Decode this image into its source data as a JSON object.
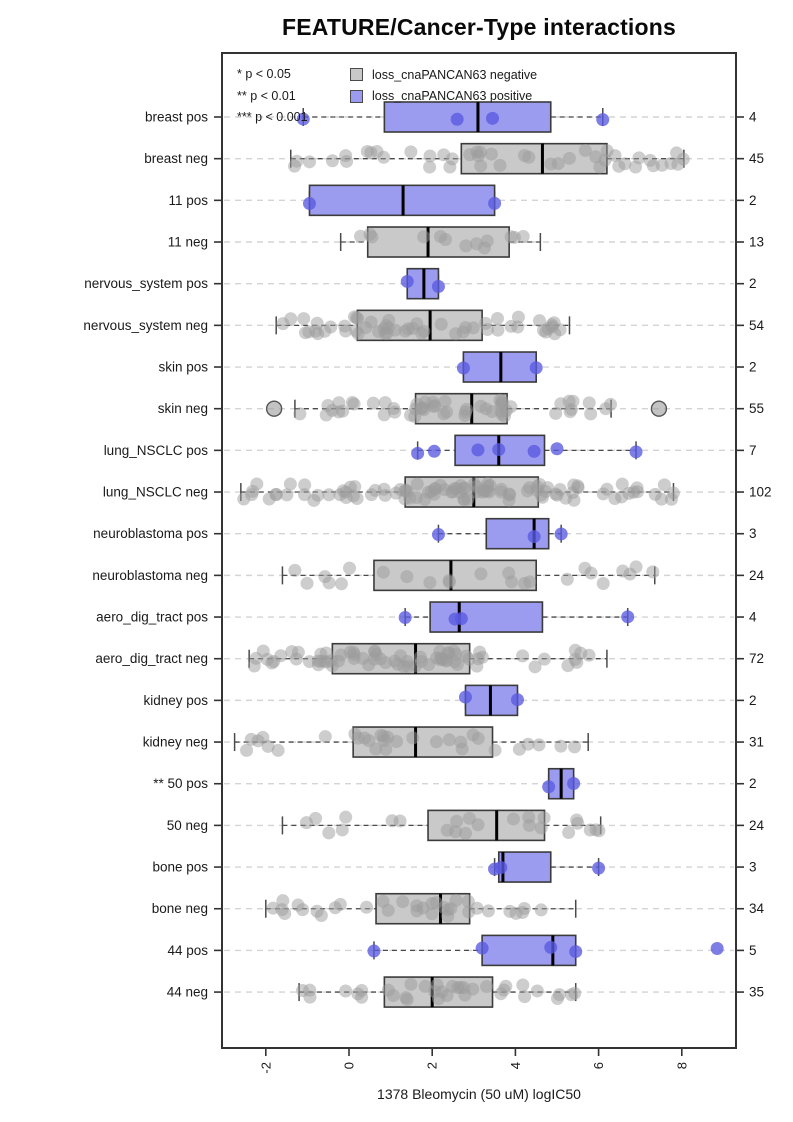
{
  "title": "FEATURE/Cancer-Type interactions",
  "x_axis": {
    "label": "1378 Bleomycin (50 uM) logIC50",
    "ticks": [
      -2,
      0,
      2,
      4,
      6,
      8
    ],
    "range": [
      -3.05,
      9.3
    ]
  },
  "significance_legend": [
    "* p < 0.05",
    "** p < 0.01",
    "*** p < 0.001"
  ],
  "series_legend": [
    {
      "label": "loss_cnaPANCAN63 negative",
      "color": "#c9c9c9"
    },
    {
      "label": "loss_cnaPANCAN63 positive",
      "color": "#9b9bef"
    }
  ],
  "colors": {
    "box_negative": "#c9c9c9",
    "box_positive": "#9b9bef",
    "box_stroke": "#3b3b3b",
    "point_negative": "#9b9b9b",
    "point_positive": "#5a5ae0",
    "median": "#000000",
    "gridline": "#d4d4d4",
    "whisker": "#4a4a4a",
    "frame": "#333333"
  },
  "chart_data": {
    "type": "boxplot-horizontal",
    "orientation": "horizontal",
    "grid": "dashed-horizontal",
    "legend_position": "top-left-inside",
    "rows": [
      {
        "label": "breast pos",
        "group": "positive",
        "n": 4,
        "whisker_lo": -1.1,
        "q1": 0.85,
        "median": 3.1,
        "q3": 4.85,
        "whisker_hi": 6.1,
        "points": [
          -1.1,
          2.6,
          3.45,
          6.1
        ]
      },
      {
        "label": "breast neg",
        "group": "negative",
        "n": 45,
        "whisker_lo": -1.4,
        "q1": 2.7,
        "median": 4.65,
        "q3": 6.2,
        "whisker_hi": 8.05
      },
      {
        "label": "11 pos",
        "group": "positive",
        "n": 2,
        "whisker_lo": -0.95,
        "q1": -0.95,
        "median": 1.3,
        "q3": 3.5,
        "whisker_hi": 3.5,
        "points": [
          -0.95,
          3.5
        ]
      },
      {
        "label": "11 neg",
        "group": "negative",
        "n": 13,
        "whisker_lo": -0.2,
        "q1": 0.45,
        "median": 1.9,
        "q3": 3.85,
        "whisker_hi": 4.6
      },
      {
        "label": "nervous_system pos",
        "group": "positive",
        "n": 2,
        "whisker_lo": 1.4,
        "q1": 1.4,
        "median": 1.8,
        "q3": 2.15,
        "whisker_hi": 2.15,
        "points": [
          1.4,
          2.15
        ]
      },
      {
        "label": "nervous_system neg",
        "group": "negative",
        "n": 54,
        "whisker_lo": -1.75,
        "q1": 0.2,
        "median": 1.95,
        "q3": 3.2,
        "whisker_hi": 5.3
      },
      {
        "label": "skin pos",
        "group": "positive",
        "n": 2,
        "whisker_lo": 2.75,
        "q1": 2.75,
        "median": 3.65,
        "q3": 4.5,
        "whisker_hi": 4.5,
        "points": [
          2.75,
          4.5
        ]
      },
      {
        "label": "skin neg",
        "group": "negative",
        "n": 55,
        "whisker_lo": -1.3,
        "q1": 1.6,
        "median": 2.95,
        "q3": 3.8,
        "whisker_hi": 6.3,
        "outliers": [
          -1.8,
          7.45
        ]
      },
      {
        "label": "lung_NSCLC pos",
        "group": "positive",
        "n": 7,
        "whisker_lo": 1.65,
        "q1": 2.55,
        "median": 3.6,
        "q3": 4.7,
        "whisker_hi": 6.9,
        "points": [
          1.65,
          2.05,
          3.1,
          3.6,
          4.45,
          5.0,
          6.9
        ]
      },
      {
        "label": "lung_NSCLC neg",
        "group": "negative",
        "n": 102,
        "whisker_lo": -2.6,
        "q1": 1.35,
        "median": 3.0,
        "q3": 4.55,
        "whisker_hi": 7.8
      },
      {
        "label": "neuroblastoma pos",
        "group": "positive",
        "n": 3,
        "whisker_lo": 2.15,
        "q1": 3.3,
        "median": 4.45,
        "q3": 4.8,
        "whisker_hi": 5.1,
        "points": [
          2.15,
          4.45,
          5.1
        ]
      },
      {
        "label": "neuroblastoma neg",
        "group": "negative",
        "n": 24,
        "whisker_lo": -1.6,
        "q1": 0.6,
        "median": 2.45,
        "q3": 4.5,
        "whisker_hi": 7.35
      },
      {
        "label": "aero_dig_tract pos",
        "group": "positive",
        "n": 4,
        "whisker_lo": 1.35,
        "q1": 1.95,
        "median": 2.65,
        "q3": 4.65,
        "whisker_hi": 6.7,
        "points": [
          1.35,
          2.55,
          2.7,
          6.7
        ]
      },
      {
        "label": "aero_dig_tract neg",
        "group": "negative",
        "n": 72,
        "whisker_lo": -2.4,
        "q1": -0.4,
        "median": 1.6,
        "q3": 2.9,
        "whisker_hi": 6.2
      },
      {
        "label": "kidney pos",
        "group": "positive",
        "n": 2,
        "whisker_lo": 2.8,
        "q1": 2.8,
        "median": 3.4,
        "q3": 4.05,
        "whisker_hi": 4.05,
        "points": [
          2.8,
          4.05
        ]
      },
      {
        "label": "kidney neg",
        "group": "negative",
        "n": 31,
        "whisker_lo": -2.75,
        "q1": 0.1,
        "median": 1.6,
        "q3": 3.45,
        "whisker_hi": 5.75
      },
      {
        "label": "** 50 pos",
        "group": "positive",
        "n": 2,
        "whisker_lo": 4.8,
        "q1": 4.8,
        "median": 5.1,
        "q3": 5.4,
        "whisker_hi": 5.4,
        "points": [
          4.8,
          5.4
        ]
      },
      {
        "label": "50 neg",
        "group": "negative",
        "n": 24,
        "whisker_lo": -1.6,
        "q1": 1.9,
        "median": 3.55,
        "q3": 4.7,
        "whisker_hi": 6.05
      },
      {
        "label": "bone pos",
        "group": "positive",
        "n": 3,
        "whisker_lo": 3.5,
        "q1": 3.6,
        "median": 3.7,
        "q3": 4.85,
        "whisker_hi": 6.0,
        "points": [
          3.5,
          3.65,
          6.0
        ]
      },
      {
        "label": "bone neg",
        "group": "negative",
        "n": 34,
        "whisker_lo": -2.0,
        "q1": 0.65,
        "median": 2.2,
        "q3": 2.9,
        "whisker_hi": 5.45
      },
      {
        "label": "44 pos",
        "group": "positive",
        "n": 5,
        "whisker_lo": 0.6,
        "q1": 3.2,
        "median": 4.9,
        "q3": 5.45,
        "whisker_hi": 5.45,
        "points": [
          0.6,
          3.2,
          4.85,
          5.45,
          8.85
        ]
      },
      {
        "label": "44 neg",
        "group": "negative",
        "n": 35,
        "whisker_lo": -1.2,
        "q1": 0.85,
        "median": 2.0,
        "q3": 3.45,
        "whisker_hi": 5.45
      }
    ]
  }
}
